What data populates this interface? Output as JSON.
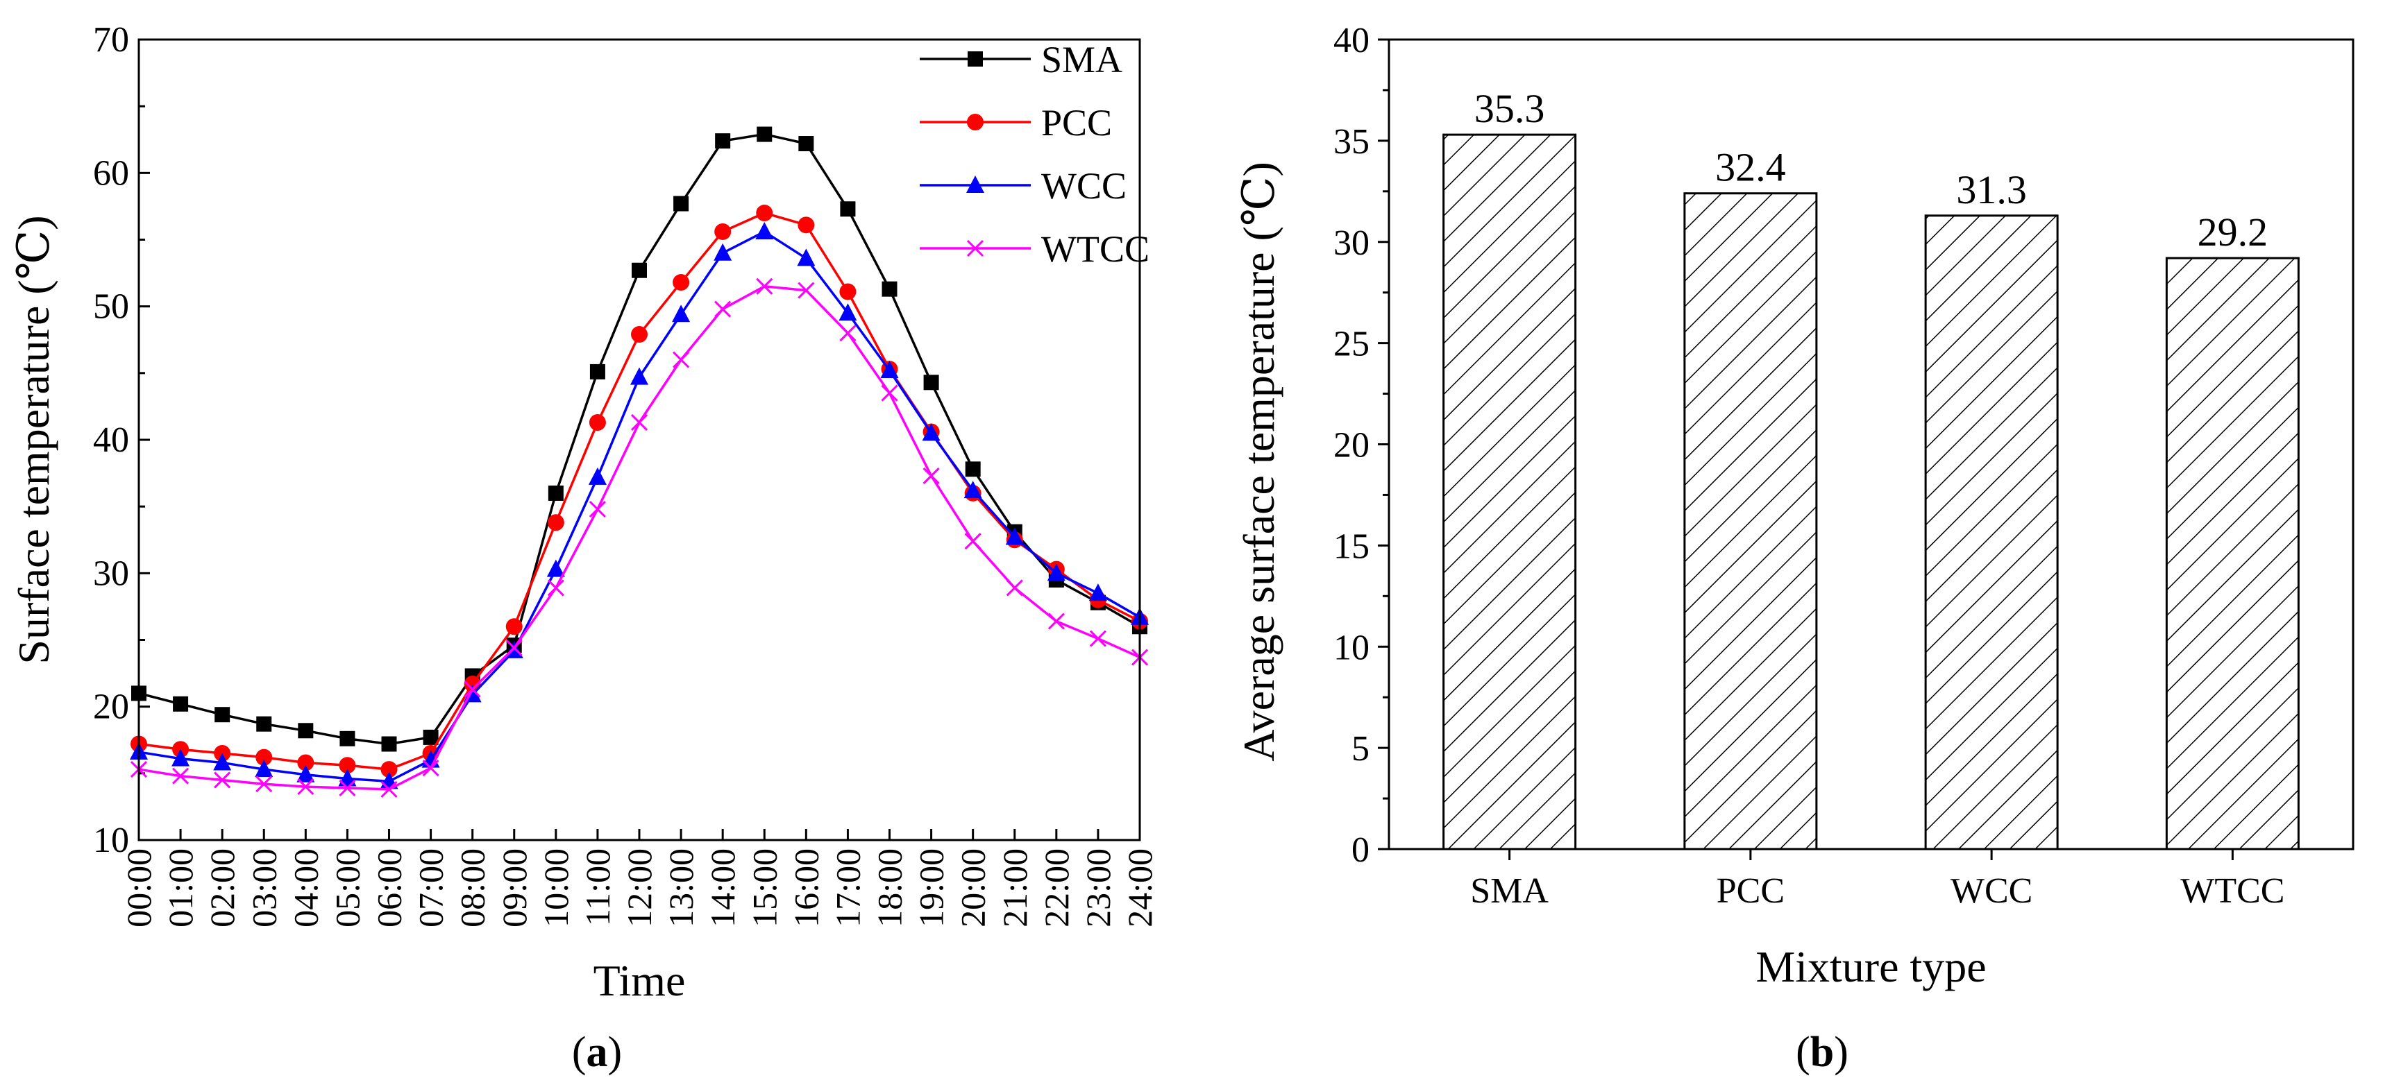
{
  "chart_data": [
    {
      "panel": "a",
      "type": "line",
      "xlabel": "Time",
      "ylabel": "Surface temperature (℃)",
      "ylim": [
        10,
        70
      ],
      "yticks": [
        10,
        20,
        30,
        40,
        50,
        60,
        70
      ],
      "x": [
        "00:00",
        "01:00",
        "02:00",
        "03:00",
        "04:00",
        "05:00",
        "06:00",
        "07:00",
        "08:00",
        "09:00",
        "10:00",
        "11:00",
        "12:00",
        "13:00",
        "14:00",
        "15:00",
        "16:00",
        "17:00",
        "18:00",
        "19:00",
        "20:00",
        "21:00",
        "22:00",
        "23:00",
        "24:00"
      ],
      "legend_position": "top-right",
      "series": [
        {
          "name": "SMA",
          "color": "#000000",
          "marker": "square",
          "values": [
            21.0,
            20.2,
            19.4,
            18.7,
            18.2,
            17.6,
            17.2,
            17.7,
            22.3,
            24.6,
            36.0,
            45.1,
            52.7,
            57.7,
            62.4,
            62.9,
            62.2,
            57.3,
            51.3,
            44.3,
            37.8,
            33.1,
            29.5,
            27.8,
            26.0
          ]
        },
        {
          "name": "PCC",
          "color": "#ff0000",
          "marker": "circle",
          "values": [
            17.2,
            16.8,
            16.5,
            16.2,
            15.8,
            15.6,
            15.3,
            16.5,
            21.7,
            26.0,
            33.8,
            41.3,
            47.9,
            51.8,
            55.6,
            57.0,
            56.1,
            51.1,
            45.3,
            40.6,
            36.0,
            32.5,
            30.3,
            28.0,
            26.4
          ]
        },
        {
          "name": "WCC",
          "color": "#0000ff",
          "marker": "triangle",
          "values": [
            16.6,
            16.1,
            15.8,
            15.3,
            14.9,
            14.6,
            14.4,
            16.0,
            20.9,
            24.2,
            30.3,
            37.2,
            44.7,
            49.4,
            54.0,
            55.6,
            53.6,
            49.5,
            45.2,
            40.5,
            36.2,
            32.7,
            30.0,
            28.5,
            26.7
          ]
        },
        {
          "name": "WTCC",
          "color": "#ff00ff",
          "marker": "x",
          "values": [
            15.3,
            14.8,
            14.5,
            14.2,
            14.0,
            13.9,
            13.8,
            15.4,
            21.3,
            24.4,
            28.9,
            34.8,
            41.3,
            46.0,
            49.8,
            51.5,
            51.2,
            48.0,
            43.5,
            37.3,
            32.4,
            28.9,
            26.4,
            25.1,
            23.7
          ]
        }
      ],
      "caption": "(a)"
    },
    {
      "panel": "b",
      "type": "bar",
      "xlabel": "Mixture type",
      "ylabel": "Average surface temperature (℃)",
      "ylim": [
        0,
        40
      ],
      "yticks": [
        0,
        5,
        10,
        15,
        20,
        25,
        30,
        35,
        40
      ],
      "categories": [
        "SMA",
        "PCC",
        "WCC",
        "WTCC"
      ],
      "values": [
        35.3,
        32.4,
        31.3,
        29.2
      ],
      "data_labels": [
        "35.3",
        "32.4",
        "31.3",
        "29.2"
      ],
      "fill": "diagonal-hatch",
      "caption": "(b)"
    }
  ]
}
